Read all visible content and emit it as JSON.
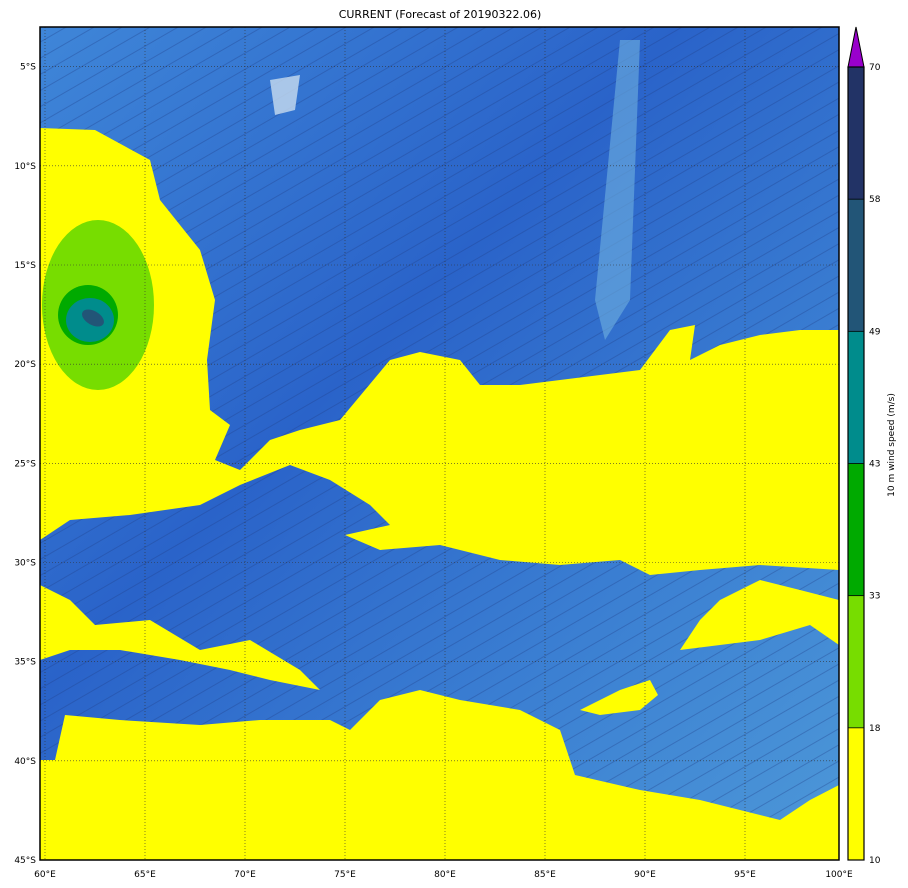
{
  "title": "CURRENT (Forecast of 20190322.06)",
  "map": {
    "lon_range": [
      59.75,
      99.7
    ],
    "lat_range": [
      -3,
      -45
    ],
    "lon_ticks": [
      {
        "v": 60,
        "label": "60°E"
      },
      {
        "v": 65,
        "label": "65°E"
      },
      {
        "v": 70,
        "label": "70°E"
      },
      {
        "v": 75,
        "label": "75°E"
      },
      {
        "v": 80,
        "label": "80°E"
      },
      {
        "v": 85,
        "label": "85°E"
      },
      {
        "v": 90,
        "label": "90°E"
      },
      {
        "v": 95,
        "label": "95°E"
      },
      {
        "v": 100,
        "label": "100°E"
      }
    ],
    "lat_ticks": [
      {
        "v": -5,
        "label": "5°S"
      },
      {
        "v": -10,
        "label": "10°S"
      },
      {
        "v": -15,
        "label": "15°S"
      },
      {
        "v": -20,
        "label": "20°S"
      },
      {
        "v": -25,
        "label": "25°S"
      },
      {
        "v": -30,
        "label": "30°S"
      },
      {
        "v": -35,
        "label": "35°S"
      },
      {
        "v": -40,
        "label": "40°S"
      },
      {
        "v": -45,
        "label": "45°S"
      }
    ],
    "grid": true,
    "background": "bathymetry relief"
  },
  "colorbar": {
    "label": "10 m wind speed (m/s)",
    "levels": [
      {
        "v": 10,
        "label": "10"
      },
      {
        "v": 18,
        "label": "18"
      },
      {
        "v": 33,
        "label": "33"
      },
      {
        "v": 43,
        "label": "43"
      },
      {
        "v": 49,
        "label": "49"
      },
      {
        "v": 58,
        "label": "58"
      },
      {
        "v": 70,
        "label": "70"
      }
    ],
    "colors": [
      "#ffff00",
      "#77dd00",
      "#00aa00",
      "#008c8c",
      "#225577",
      "#223366"
    ],
    "extend_color": "#9900cc"
  }
}
